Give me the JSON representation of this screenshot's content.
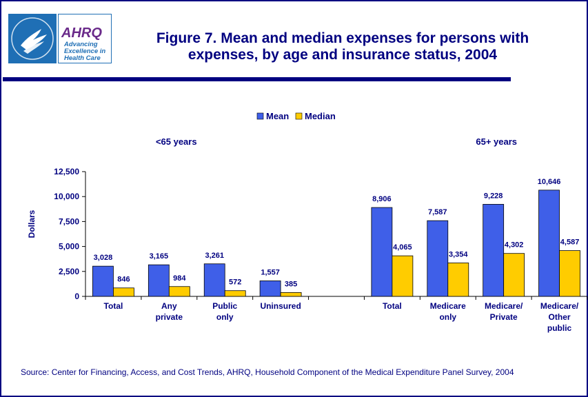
{
  "logo": {
    "hhs_icon": "hhs-eagle-icon",
    "ahrq_name": "AHRQ",
    "ahrq_tagline": [
      "Advancing",
      "Excellence in",
      "Health Care"
    ]
  },
  "title_lines": [
    "Figure 7. Mean and median expenses for persons with",
    "expenses, by age and insurance status, 2004"
  ],
  "source": "Source: Center for Financing, Access, and Cost Trends, AHRQ, Household Component of the Medical Expenditure Panel Survey, 2004",
  "colors": {
    "mean": "#3f5fe8",
    "median": "#ffcc00",
    "text": "#000080",
    "axis": "#000000"
  },
  "chart_data": {
    "type": "bar",
    "ylabel": "Dollars",
    "ylim": [
      0,
      12500
    ],
    "yticks": [
      "0",
      "2,500",
      "5,000",
      "7,500",
      "10,000",
      "12,500"
    ],
    "legend": {
      "placement": "top-center",
      "entries": [
        "Mean",
        "Median"
      ]
    },
    "groups": [
      {
        "label": "<65 years"
      },
      {
        "label": "65+ years"
      }
    ],
    "categories": [
      {
        "label": [
          "Total"
        ],
        "mean": 3028,
        "median": 846,
        "mean_label": "3,028",
        "median_label": "846",
        "group": 0
      },
      {
        "label": [
          "Any",
          "private"
        ],
        "mean": 3165,
        "median": 984,
        "mean_label": "3,165",
        "median_label": "984",
        "group": 0
      },
      {
        "label": [
          "Public",
          "only"
        ],
        "mean": 3261,
        "median": 572,
        "mean_label": "3,261",
        "median_label": "572",
        "group": 0
      },
      {
        "label": [
          "Uninsured"
        ],
        "mean": 1557,
        "median": 385,
        "mean_label": "1,557",
        "median_label": "385",
        "group": 0
      },
      {
        "label": [],
        "mean": null,
        "median": null,
        "mean_label": "",
        "median_label": "",
        "group": null
      },
      {
        "label": [
          "Total"
        ],
        "mean": 8906,
        "median": 4065,
        "mean_label": "8,906",
        "median_label": "4,065",
        "group": 1
      },
      {
        "label": [
          "Medicare",
          "only"
        ],
        "mean": 7587,
        "median": 3354,
        "mean_label": "7,587",
        "median_label": "3,354",
        "group": 1
      },
      {
        "label": [
          "Medicare/",
          "Private"
        ],
        "mean": 9228,
        "median": 4302,
        "mean_label": "9,228",
        "median_label": "4,302",
        "group": 1
      },
      {
        "label": [
          "Medicare/",
          "Other",
          "public"
        ],
        "mean": 10646,
        "median": 4587,
        "mean_label": "10,646",
        "median_label": "4,587",
        "group": 1
      }
    ]
  }
}
